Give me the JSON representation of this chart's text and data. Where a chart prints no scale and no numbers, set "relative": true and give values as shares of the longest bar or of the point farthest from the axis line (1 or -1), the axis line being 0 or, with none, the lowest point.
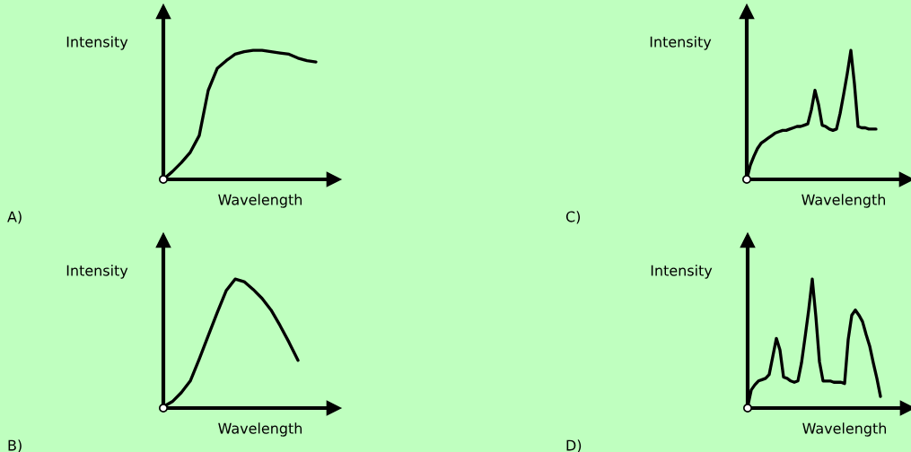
{
  "chart_data": [
    {
      "type": "line",
      "relative": true,
      "xlabel": "Wavelength",
      "ylabel": "Intensity",
      "annotations": [
        "A)"
      ],
      "categories": [
        null,
        null,
        null,
        null,
        null,
        null,
        null,
        null,
        null,
        null,
        null,
        null,
        null,
        null,
        null,
        null,
        null,
        null
      ],
      "series": [
        {
          "color": "#000000",
          "values": [
            0,
            0.06,
            0.13,
            0.21,
            0.34,
            0.69,
            0.86,
            0.92,
            0.97,
            0.99,
            1,
            1,
            0.99,
            0.98,
            0.97,
            0.94,
            0.92,
            0.91
          ]
        }
      ]
    },
    {
      "type": "line",
      "relative": true,
      "xlabel": "Wavelength",
      "ylabel": "Intensity",
      "annotations": [
        "B)"
      ],
      "categories": [
        null,
        null,
        null,
        null,
        null,
        null,
        null,
        null,
        null,
        null,
        null,
        null,
        null,
        null,
        null,
        null
      ],
      "series": [
        {
          "color": "#000000",
          "values": [
            0.01,
            0.05,
            0.12,
            0.21,
            0.38,
            0.56,
            0.74,
            0.91,
            1,
            0.98,
            0.92,
            0.85,
            0.76,
            0.64,
            0.51,
            0.37
          ]
        }
      ]
    },
    {
      "type": "line",
      "relative": true,
      "xlabel": "Wavelength",
      "ylabel": "Intensity",
      "annotations": [
        "C)"
      ],
      "categories": [
        null,
        null,
        null,
        null,
        null,
        null,
        null,
        null,
        null,
        null,
        null,
        null,
        null,
        null,
        null,
        null,
        null,
        null,
        null,
        null,
        null,
        null,
        null,
        null,
        null,
        null,
        null,
        null,
        null,
        null,
        null,
        null,
        null,
        null,
        null,
        null,
        null
      ],
      "series": [
        {
          "color": "#000000",
          "values": [
            0,
            0.11,
            0.18,
            0.24,
            0.28,
            0.3,
            0.32,
            0.34,
            0.36,
            0.37,
            0.38,
            0.38,
            0.39,
            0.4,
            0.41,
            0.41,
            0.42,
            0.43,
            0.54,
            0.69,
            0.58,
            0.42,
            0.41,
            0.39,
            0.38,
            0.39,
            0.51,
            0.66,
            0.82,
            1,
            0.74,
            0.41,
            0.4,
            0.4,
            0.39,
            0.39,
            0.39
          ]
        }
      ]
    },
    {
      "type": "line",
      "relative": true,
      "xlabel": "Wavelength",
      "ylabel": "Intensity",
      "annotations": [
        "D)"
      ],
      "categories": [
        null,
        null,
        null,
        null,
        null,
        null,
        null,
        null,
        null,
        null,
        null,
        null,
        null,
        null,
        null,
        null,
        null,
        null,
        null,
        null,
        null,
        null,
        null,
        null,
        null,
        null,
        null,
        null,
        null,
        null,
        null,
        null,
        null,
        null,
        null,
        null,
        null,
        null
      ],
      "series": [
        {
          "color": "#000000",
          "values": [
            0.01,
            0.14,
            0.18,
            0.21,
            0.22,
            0.23,
            0.26,
            0.4,
            0.54,
            0.45,
            0.24,
            0.23,
            0.21,
            0.2,
            0.21,
            0.35,
            0.55,
            0.76,
            1,
            0.71,
            0.36,
            0.21,
            0.21,
            0.21,
            0.2,
            0.2,
            0.2,
            0.19,
            0.53,
            0.72,
            0.76,
            0.72,
            0.67,
            0.57,
            0.48,
            0.35,
            0.23,
            0.09
          ]
        }
      ]
    }
  ]
}
